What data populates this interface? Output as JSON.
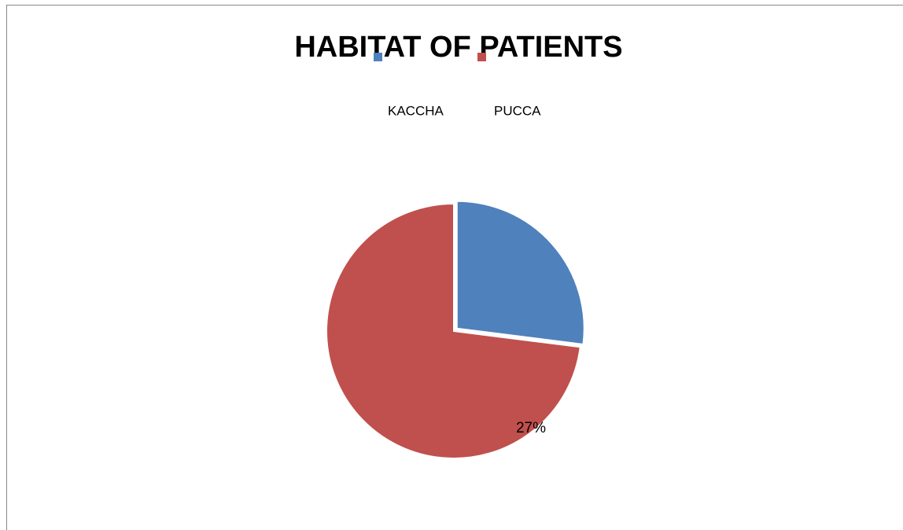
{
  "chart_data": {
    "type": "pie",
    "title": "HABITAT OF PATIENTS",
    "categories": [
      "KACCHA",
      "PUCCA"
    ],
    "values": [
      27,
      73
    ],
    "value_labels": [
      "27%",
      null
    ],
    "colors": [
      "#4f81bd",
      "#c0504d"
    ],
    "legend": "top"
  }
}
